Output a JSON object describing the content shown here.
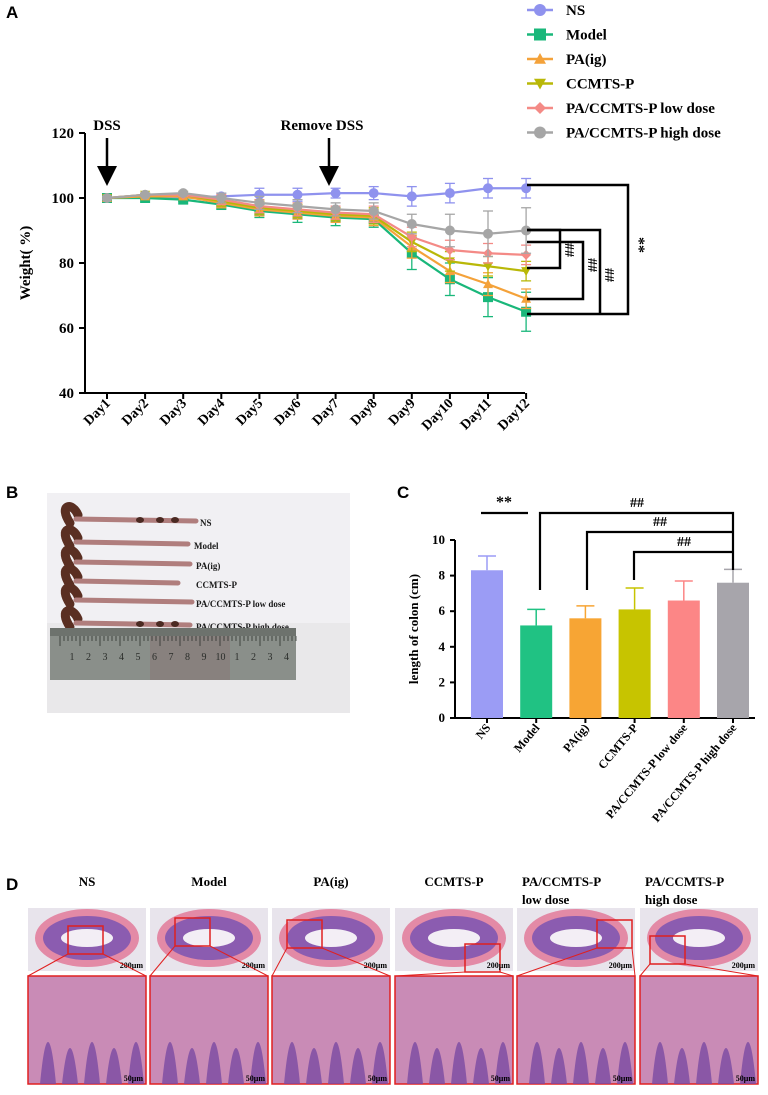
{
  "figure": {
    "panels": {
      "a": "A",
      "b": "B",
      "c": "C",
      "d": "D"
    }
  },
  "chart_data": [
    {
      "type": "line",
      "title": "",
      "xlabel": "",
      "ylabel": "Weight( %)",
      "ylim": [
        40,
        120
      ],
      "yticks": [
        40,
        60,
        80,
        100,
        120
      ],
      "categories": [
        "Day1",
        "Day2",
        "Day3",
        "Day4",
        "Day5",
        "Day6",
        "Day7",
        "Day8",
        "Day9",
        "Day10",
        "Day11",
        "Day12"
      ],
      "series": [
        {
          "name": "NS",
          "color": "#8f92ee",
          "marker": "circle",
          "values": [
            100,
            100.5,
            100,
            100.5,
            101,
            101,
            101.5,
            101.5,
            100.5,
            101.5,
            103,
            103
          ],
          "errors": [
            0.5,
            0.5,
            0.5,
            1,
            2,
            2,
            1.5,
            2,
            3,
            3,
            3,
            3
          ]
        },
        {
          "name": "Model",
          "color": "#19b77a",
          "marker": "square",
          "values": [
            100,
            100,
            99.5,
            98,
            96,
            95,
            94,
            93.5,
            83,
            75,
            69.5,
            65
          ],
          "errors": [
            0.5,
            0.5,
            0.5,
            1.5,
            2,
            2.5,
            2.5,
            2.5,
            5,
            5,
            6,
            6
          ]
        },
        {
          "name": "PA(ig)",
          "color": "#f4a23a",
          "marker": "triangle",
          "values": [
            100,
            100.5,
            100.5,
            98.5,
            96.5,
            95.5,
            94.5,
            94,
            85,
            77.5,
            73.5,
            69
          ],
          "errors": [
            0.5,
            0.5,
            0.5,
            1.5,
            2,
            2,
            2,
            2.5,
            3.5,
            3.5,
            3.5,
            3
          ]
        },
        {
          "name": "CCMTS-P",
          "color": "#b9b808",
          "marker": "triangle-down",
          "values": [
            100,
            101,
            101,
            99,
            97,
            96,
            95,
            94.5,
            86.5,
            80.5,
            79,
            77.5
          ],
          "errors": [
            0.5,
            0.5,
            0.5,
            1.5,
            2,
            2,
            2,
            2.5,
            3,
            3,
            3,
            3
          ]
        },
        {
          "name": "PA/CCMTS-P low dose",
          "color": "#f48a86",
          "marker": "diamond",
          "values": [
            100,
            101,
            101,
            99.5,
            97.5,
            96.5,
            95.5,
            95,
            88,
            84,
            83,
            82.5
          ],
          "errors": [
            0.5,
            0.5,
            0.5,
            1.5,
            2,
            2,
            2,
            2.5,
            3,
            3,
            3,
            3
          ]
        },
        {
          "name": "PA/CCMTS-P high dose",
          "color": "#a6a6a6",
          "marker": "circle",
          "values": [
            100,
            101,
            101.5,
            100,
            98.5,
            97.5,
            96.5,
            96,
            92,
            90,
            89,
            90
          ],
          "errors": [
            0.5,
            0.5,
            0.5,
            1.5,
            2,
            2,
            2,
            2.5,
            3,
            5,
            7,
            7
          ]
        }
      ],
      "annotations": {
        "dss_label": "DSS",
        "remove_dss_label": "Remove DSS",
        "sig_double_star": "**",
        "sig_hash": "##"
      }
    },
    {
      "type": "bar",
      "title": "",
      "xlabel": "",
      "ylabel": "length of colon (cm)",
      "ylim": [
        0,
        10
      ],
      "yticks": [
        0,
        2,
        4,
        6,
        8,
        10
      ],
      "categories": [
        "NS",
        "Model",
        "PA(ig)",
        "CCMTS-P",
        "PA/CCMTS-P low dose",
        "PA/CCMTS-P high dose"
      ],
      "values": [
        8.3,
        5.2,
        5.6,
        6.1,
        6.6,
        7.6
      ],
      "errors": [
        0.8,
        0.9,
        0.7,
        1.2,
        1.1,
        0.75
      ],
      "colors": [
        "#9b9cf5",
        "#20c283",
        "#f7a534",
        "#c7c400",
        "#fc8686",
        "#a7a5ab"
      ],
      "annotations": {
        "sig_double_star": "**",
        "sig_hash": "##"
      }
    }
  ],
  "photo_b": {
    "labels": [
      "NS",
      "Model",
      "PA(ig)",
      "CCMTS-P",
      "PA/CCMTS-P low dose",
      "PA/CCMTS-P high dose"
    ],
    "ruler_numbers": [
      "1",
      "2",
      "3",
      "4",
      "5",
      "6",
      "7",
      "8",
      "9",
      "10",
      "1",
      "2",
      "3",
      "4"
    ]
  },
  "histology_d": {
    "columns": [
      {
        "title_l1": "NS",
        "title_l2": ""
      },
      {
        "title_l1": "Model",
        "title_l2": ""
      },
      {
        "title_l1": "PA(ig)",
        "title_l2": ""
      },
      {
        "title_l1": "CCMTS-P",
        "title_l2": ""
      },
      {
        "title_l1": "PA/CCMTS-P",
        "title_l2": "low dose"
      },
      {
        "title_l1": "PA/CCMTS-P",
        "title_l2": "high dose"
      }
    ],
    "scale_top": "200μm",
    "scale_bottom": "50μm"
  }
}
